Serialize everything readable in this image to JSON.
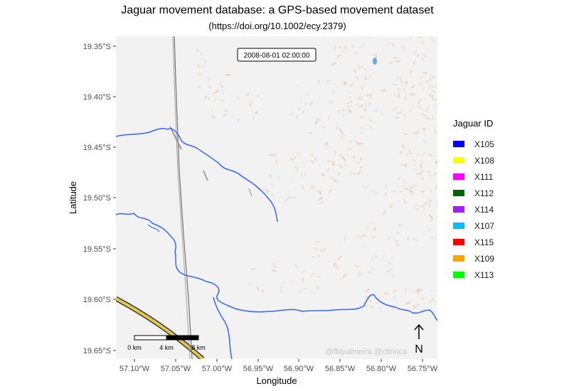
{
  "title": "Jaguar movement database: a GPS-based movement dataset",
  "subtitle": "(https://doi.org/10.1002/ecy.2379)",
  "timestamp_label": "2008-08-01 02:00:00",
  "watermark": "@fblpalmeira @cttrinca",
  "north_arrow_label": "N",
  "scale_bar": {
    "labels": [
      "0 km",
      "4 km",
      "8 km"
    ]
  },
  "legend": {
    "title": "Jaguar ID",
    "items": [
      {
        "label": "X105",
        "color": "#0000ff"
      },
      {
        "label": "X108",
        "color": "#ffff00"
      },
      {
        "label": "X111",
        "color": "#ff00ff"
      },
      {
        "label": "X112",
        "color": "#006400"
      },
      {
        "label": "X114",
        "color": "#a020f0"
      },
      {
        "label": "X107",
        "color": "#00bfff"
      },
      {
        "label": "X115",
        "color": "#ff0000"
      },
      {
        "label": "X109",
        "color": "#ffa500"
      },
      {
        "label": "X113",
        "color": "#00ff00"
      }
    ]
  },
  "axes": {
    "xlabel": "Longitude",
    "ylabel": "Latitude",
    "x_ticks": [
      "57.10°W",
      "57.05°W",
      "57.00°W",
      "56.95°W",
      "56.90°W",
      "56.85°W",
      "56.80°W",
      "56.75°W"
    ],
    "y_ticks": [
      "19.35°S",
      "19.40°S",
      "19.45°S",
      "19.50°S",
      "19.55°S",
      "19.60°S",
      "19.65°S"
    ]
  },
  "colors": {
    "river": "#3366ff",
    "road_fill": "#e6c84a",
    "road_casing": "#3a3a3a",
    "panel_bg": "#f2f2f2",
    "terrain_dots": "#e8c9b0"
  }
}
